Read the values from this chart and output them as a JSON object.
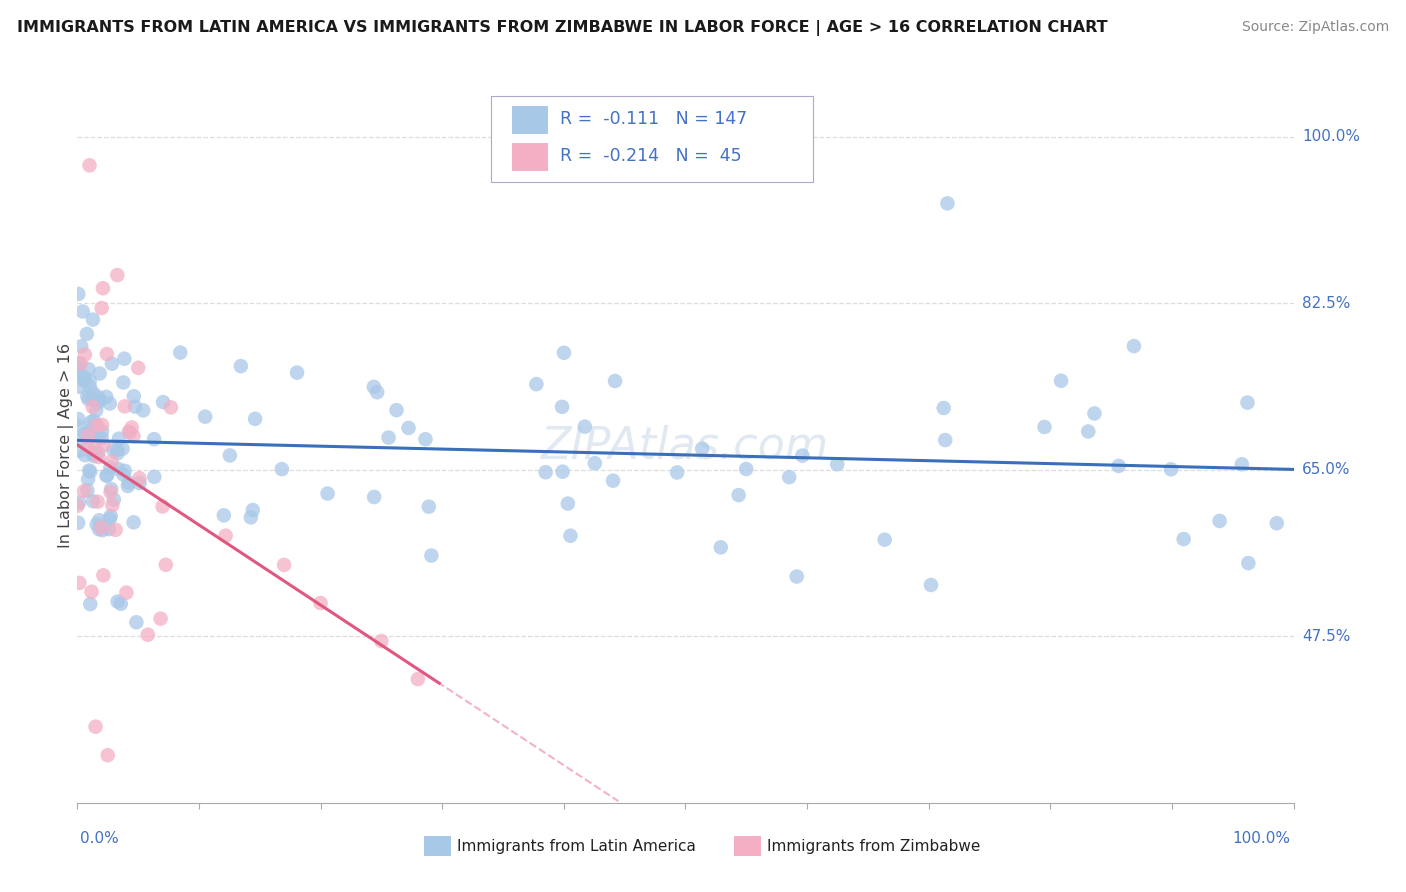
{
  "title": "IMMIGRANTS FROM LATIN AMERICA VS IMMIGRANTS FROM ZIMBABWE IN LABOR FORCE | AGE > 16 CORRELATION CHART",
  "source": "Source: ZipAtlas.com",
  "ylabel": "In Labor Force | Age > 16",
  "legend_latin_r": "-0.111",
  "legend_latin_n": "147",
  "legend_zim_r": "-0.214",
  "legend_zim_n": "45",
  "color_latin": "#a8c8e8",
  "color_zimbabwe": "#f4afc4",
  "color_latin_line": "#3a6fba",
  "color_zimbabwe_line": "#e05880",
  "color_axis_text": "#4472C4",
  "xlim": [
    0.0,
    1.0
  ],
  "ylim": [
    0.3,
    1.05
  ],
  "ytick_vals": [
    0.475,
    0.65,
    0.825,
    1.0
  ],
  "ytick_labels": [
    "47.5%",
    "65.0%",
    "82.5%",
    "100.0%"
  ],
  "background_color": "#ffffff",
  "grid_color": "#dddddd",
  "scatter_size": 110,
  "scatter_alpha": 0.75
}
